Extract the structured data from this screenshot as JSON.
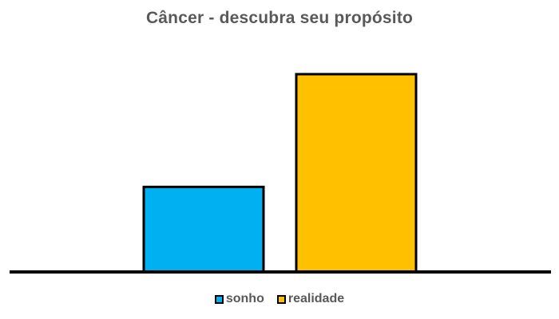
{
  "chart_data": {
    "type": "bar",
    "title": "Câncer - descubra seu propósito",
    "categories": [
      ""
    ],
    "series": [
      {
        "name": "sonho",
        "values": [
          43
        ],
        "color": "#00B0F0"
      },
      {
        "name": "realidade",
        "values": [
          100
        ],
        "color": "#FFC000"
      }
    ],
    "xlabel": "",
    "ylabel": "",
    "ylim": [
      0,
      100
    ],
    "grid": false,
    "legend_position": "bottom"
  }
}
